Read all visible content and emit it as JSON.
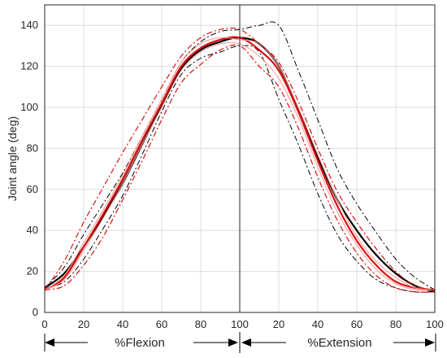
{
  "chart_data": {
    "type": "line",
    "title": "",
    "ylabel": "Joint angle (deg)",
    "ylim": [
      0,
      150
    ],
    "yticks": [
      "0",
      "20",
      "40",
      "60",
      "80",
      "100",
      "120",
      "140"
    ],
    "xticks": [
      "0",
      "20",
      "40",
      "60",
      "80",
      "100",
      "20",
      "40",
      "60",
      "80",
      "100"
    ],
    "grid": true,
    "phases": {
      "flexion": "%Flexion",
      "extension": "%Extension"
    },
    "x": [
      0,
      10,
      20,
      30,
      40,
      50,
      60,
      70,
      80,
      90,
      100,
      110,
      120,
      130,
      140,
      150,
      160,
      170,
      180,
      190,
      200
    ],
    "series": [
      {
        "color": "#000000",
        "style": "solid",
        "width": 2.2,
        "values": [
          12,
          19,
          32,
          47,
          63,
          82,
          101,
          119,
          128,
          132,
          134,
          131,
          120,
          99,
          76,
          55,
          40,
          28,
          19,
          13,
          10
        ]
      },
      {
        "color": "#000000",
        "style": "dashdot",
        "width": 1,
        "values": [
          12,
          22,
          38,
          53,
          68,
          86,
          104,
          122,
          132,
          137,
          138,
          140,
          140,
          118,
          94,
          70,
          53,
          39,
          26,
          17,
          11
        ]
      },
      {
        "color": "#000000",
        "style": "dashdot",
        "width": 1,
        "values": [
          12,
          15,
          26,
          41,
          57,
          77,
          98,
          116,
          124,
          127,
          130,
          127,
          104,
          82,
          58,
          38,
          25,
          16,
          12,
          10,
          10
        ]
      },
      {
        "color": "#dd1111",
        "style": "solid",
        "width": 2.2,
        "values": [
          11,
          17,
          32,
          48,
          65,
          84,
          102,
          120,
          129,
          133,
          134,
          128,
          118,
          98,
          74,
          52,
          35,
          23,
          15,
          12,
          11
        ]
      },
      {
        "color": "#ff9a9a",
        "style": "solid",
        "width": 1,
        "values": [
          11,
          18,
          34,
          50,
          67,
          86,
          104,
          122,
          131,
          134,
          133,
          131,
          120,
          100,
          77,
          55,
          37,
          25,
          17,
          12,
          11
        ]
      },
      {
        "color": "#ff9a9a",
        "style": "solid",
        "width": 1,
        "values": [
          11,
          16,
          30,
          46,
          63,
          82,
          100,
          118,
          127,
          131,
          131,
          125,
          114,
          95,
          71,
          49,
          33,
          21,
          14,
          11,
          11
        ]
      },
      {
        "color": "#dd1111",
        "style": "dashdot",
        "width": 1.2,
        "values": [
          11,
          25,
          44,
          61,
          78,
          94,
          110,
          125,
          134,
          138,
          138,
          131,
          122,
          103,
          80,
          59,
          44,
          31,
          20,
          13,
          11
        ]
      },
      {
        "color": "#dd1111",
        "style": "dashdot",
        "width": 1.2,
        "values": [
          11,
          13,
          23,
          37,
          55,
          74,
          94,
          112,
          121,
          128,
          130,
          120,
          110,
          90,
          66,
          45,
          29,
          18,
          12,
          10,
          10
        ]
      }
    ]
  }
}
